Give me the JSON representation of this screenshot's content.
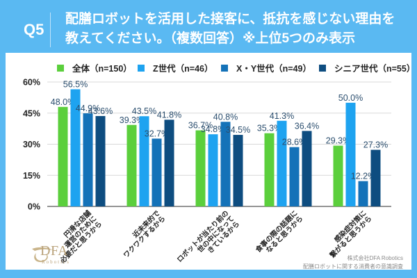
{
  "header": {
    "question_number": "Q5",
    "title_line1": "配膳ロボットを活用した接客に、抵抗を感じない理由を",
    "title_line2": "教えてください。（複数回答）※上位5つのみ表示"
  },
  "colors": {
    "frame": "#5ab9f2",
    "series": [
      "#5bcf3c",
      "#1ea3f0",
      "#1472b8",
      "#0e4d80"
    ]
  },
  "chart_data": {
    "type": "bar",
    "title": "配膳ロボットを活用した接客に、抵抗を感じない理由を教えてください。（複数回答）※上位5つのみ表示",
    "xlabel": "",
    "ylabel": "",
    "ylim": [
      0,
      60
    ],
    "yticks": [
      0,
      15,
      30,
      45,
      60
    ],
    "ytick_labels": [
      "0%",
      "15%",
      "30%",
      "45%",
      "60%"
    ],
    "grid": true,
    "legend_position": "top",
    "categories": [
      "円滑な店舗運営のために必要だと思うから",
      "近未来的でワクワクするから",
      "ロボットが当たり前の世の中になってきているから",
      "食事の際の話題になると思うから",
      "感染症対策に繋がると思うから"
    ],
    "category_lines": [
      [
        "円滑な店舗",
        "運営のために",
        "必要だと思うから"
      ],
      [
        "近未来的で",
        "ワクワクするから"
      ],
      [
        "ロボットが当たり前の",
        "世の中になって",
        "きているから"
      ],
      [
        "食事の際の話題に",
        "なると思うから"
      ],
      [
        "感染症対策に",
        "繋がると思うから"
      ]
    ],
    "series": [
      {
        "name": "全体（n=150）",
        "values": [
          48.0,
          39.3,
          36.7,
          35.3,
          29.3
        ],
        "labels": [
          "48.0%",
          "39.3%",
          "36.7%",
          "35.3%",
          "29.3%"
        ]
      },
      {
        "name": "Z世代（n=46）",
        "values": [
          56.5,
          43.5,
          34.8,
          41.3,
          50.0
        ],
        "labels": [
          "56.5%",
          "43.5%",
          "34.8%",
          "41.3%",
          "50.0%"
        ]
      },
      {
        "name": "X・Y世代（n=49）",
        "values": [
          44.9,
          32.7,
          40.8,
          28.6,
          12.2
        ],
        "labels": [
          "44.9%",
          "32.7%",
          "40.8%",
          "28.6%",
          "12.2%"
        ]
      },
      {
        "name": "シニア世代（n=55）",
        "values": [
          43.6,
          41.8,
          34.5,
          36.4,
          27.3
        ],
        "labels": [
          "43.6%",
          "41.8%",
          "34.5%",
          "36.4%",
          "27.3%"
        ]
      }
    ]
  },
  "logo": {
    "name": "DFA",
    "sub": "Robotics"
  },
  "source": {
    "line1": "株式会社DFA Robotics",
    "line2": "配膳ロボットに関する消費者の意識調査"
  }
}
